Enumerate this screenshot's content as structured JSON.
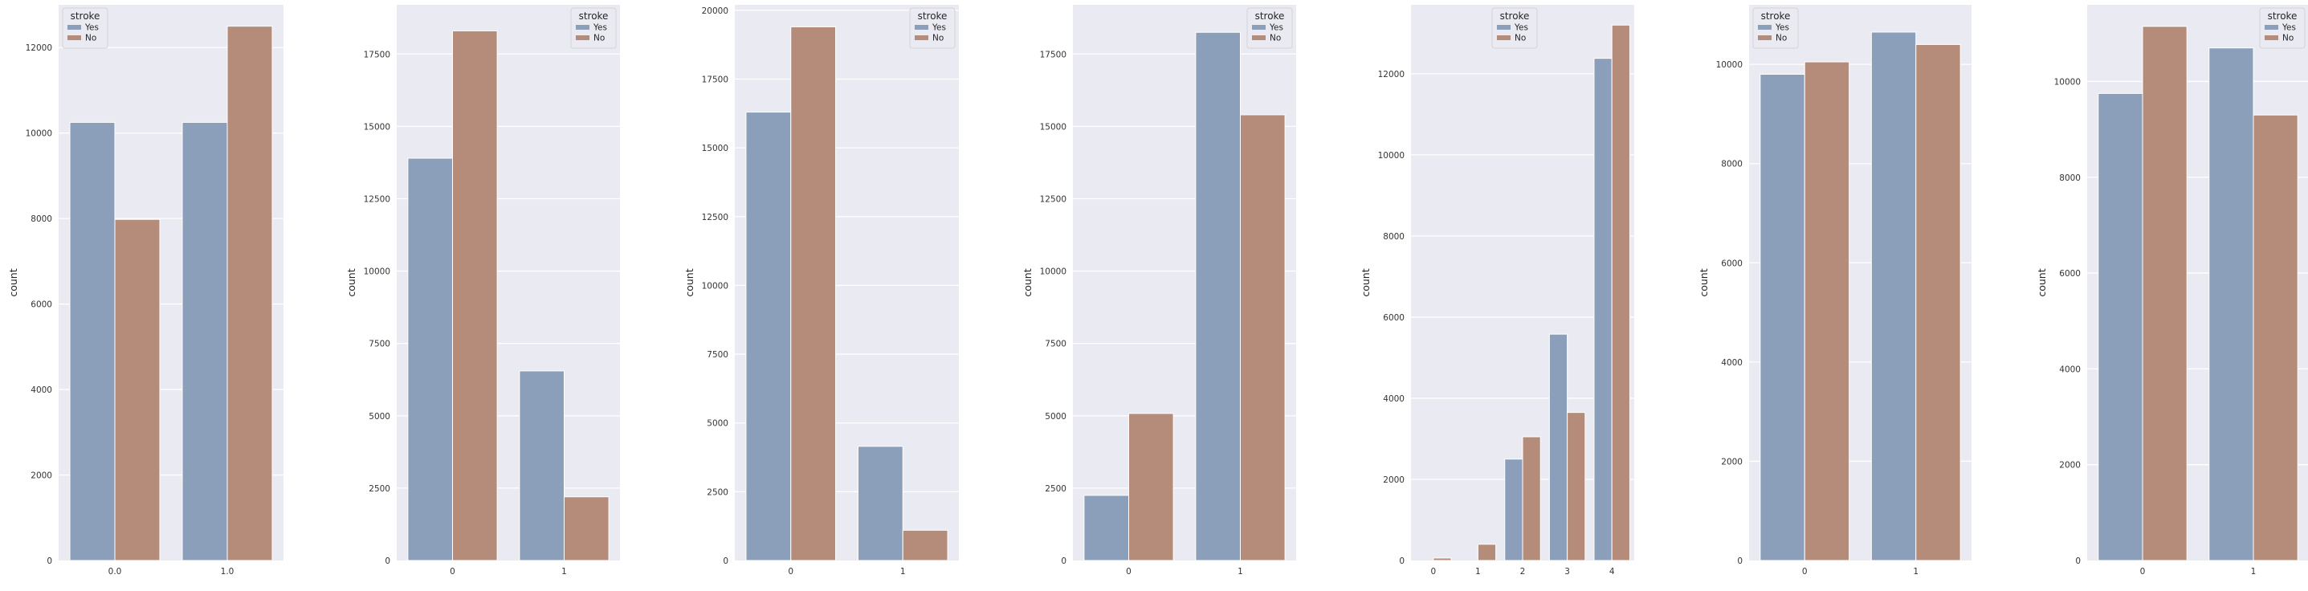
{
  "colors": {
    "Yes": "#8b9fbb",
    "No": "#b48c79"
  },
  "chart_data": [
    {
      "type": "bar",
      "xlabel": "",
      "ylabel": "count",
      "categories": [
        "0.0",
        "1.0"
      ],
      "yticks": [
        "0",
        "2000",
        "4000",
        "6000",
        "8000",
        "10000",
        "12000"
      ],
      "ytick_values": [
        0,
        2000,
        4000,
        6000,
        8000,
        10000,
        12000
      ],
      "ylim": [
        0,
        13000
      ],
      "legend": {
        "title": "stroke",
        "entries": [
          "Yes",
          "No"
        ]
      },
      "series": [
        {
          "name": "Yes",
          "values": [
            10250,
            10250
          ]
        },
        {
          "name": "No",
          "values": [
            7980,
            12500
          ]
        }
      ]
    },
    {
      "type": "bar",
      "xlabel": "",
      "ylabel": "count",
      "categories": [
        "0",
        "1"
      ],
      "yticks": [
        "0",
        "2500",
        "5000",
        "7500",
        "10000",
        "12500",
        "15000",
        "17500"
      ],
      "ytick_values": [
        0,
        2500,
        5000,
        7500,
        10000,
        12500,
        15000,
        17500
      ],
      "ylim": [
        0,
        19200
      ],
      "legend": {
        "title": "stroke",
        "entries": [
          "Yes",
          "No"
        ]
      },
      "series": [
        {
          "name": "Yes",
          "values": [
            13900,
            6550
          ]
        },
        {
          "name": "No",
          "values": [
            18300,
            2200
          ]
        }
      ]
    },
    {
      "type": "bar",
      "xlabel": "",
      "ylabel": "count",
      "categories": [
        "0",
        "1"
      ],
      "yticks": [
        "0",
        "2500",
        "5000",
        "7500",
        "10000",
        "12500",
        "15000",
        "17500",
        "20000"
      ],
      "ytick_values": [
        0,
        2500,
        5000,
        7500,
        10000,
        12500,
        15000,
        17500,
        20000
      ],
      "ylim": [
        0,
        20200
      ],
      "legend": {
        "title": "stroke",
        "entries": [
          "Yes",
          "No"
        ]
      },
      "series": [
        {
          "name": "Yes",
          "values": [
            16300,
            4150
          ]
        },
        {
          "name": "No",
          "values": [
            19400,
            1100
          ]
        }
      ]
    },
    {
      "type": "bar",
      "xlabel": "",
      "ylabel": "count",
      "categories": [
        "0",
        "1"
      ],
      "yticks": [
        "0",
        "2500",
        "5000",
        "7500",
        "10000",
        "12500",
        "15000",
        "17500"
      ],
      "ytick_values": [
        0,
        2500,
        5000,
        7500,
        10000,
        12500,
        15000,
        17500
      ],
      "ylim": [
        0,
        19200
      ],
      "legend": {
        "title": "stroke",
        "entries": [
          "Yes",
          "No"
        ]
      },
      "series": [
        {
          "name": "Yes",
          "values": [
            2250,
            18250
          ]
        },
        {
          "name": "No",
          "values": [
            5080,
            15400
          ]
        }
      ]
    },
    {
      "type": "bar",
      "xlabel": "",
      "ylabel": "count",
      "categories": [
        "0",
        "1",
        "2",
        "3",
        "4"
      ],
      "yticks": [
        "0",
        "2000",
        "4000",
        "6000",
        "8000",
        "10000",
        "12000"
      ],
      "ytick_values": [
        0,
        2000,
        4000,
        6000,
        8000,
        10000,
        12000
      ],
      "ylim": [
        0,
        13700
      ],
      "legend": {
        "title": "stroke",
        "entries": [
          "Yes",
          "No"
        ]
      },
      "series": [
        {
          "name": "Yes",
          "values": [
            0,
            0,
            2500,
            5580,
            12380
          ]
        },
        {
          "name": "No",
          "values": [
            60,
            400,
            3050,
            3650,
            13200
          ]
        }
      ]
    },
    {
      "type": "bar",
      "xlabel": "",
      "ylabel": "count",
      "categories": [
        "0",
        "1"
      ],
      "yticks": [
        "0",
        "2000",
        "4000",
        "6000",
        "8000",
        "10000"
      ],
      "ytick_values": [
        0,
        2000,
        4000,
        6000,
        8000,
        10000
      ],
      "ylim": [
        0,
        11200
      ],
      "legend": {
        "title": "stroke",
        "entries": [
          "Yes",
          "No"
        ]
      },
      "series": [
        {
          "name": "Yes",
          "values": [
            9800,
            10650
          ]
        },
        {
          "name": "No",
          "values": [
            10050,
            10400
          ]
        }
      ]
    },
    {
      "type": "bar",
      "xlabel": "",
      "ylabel": "count",
      "categories": [
        "0",
        "1"
      ],
      "yticks": [
        "0",
        "2000",
        "4000",
        "6000",
        "8000",
        "10000"
      ],
      "ytick_values": [
        0,
        2000,
        4000,
        6000,
        8000,
        10000
      ],
      "ylim": [
        0,
        11600
      ],
      "legend": {
        "title": "stroke",
        "entries": [
          "Yes",
          "No"
        ]
      },
      "series": [
        {
          "name": "Yes",
          "values": [
            9750,
            10700
          ]
        },
        {
          "name": "No",
          "values": [
            11150,
            9300
          ]
        }
      ]
    }
  ]
}
